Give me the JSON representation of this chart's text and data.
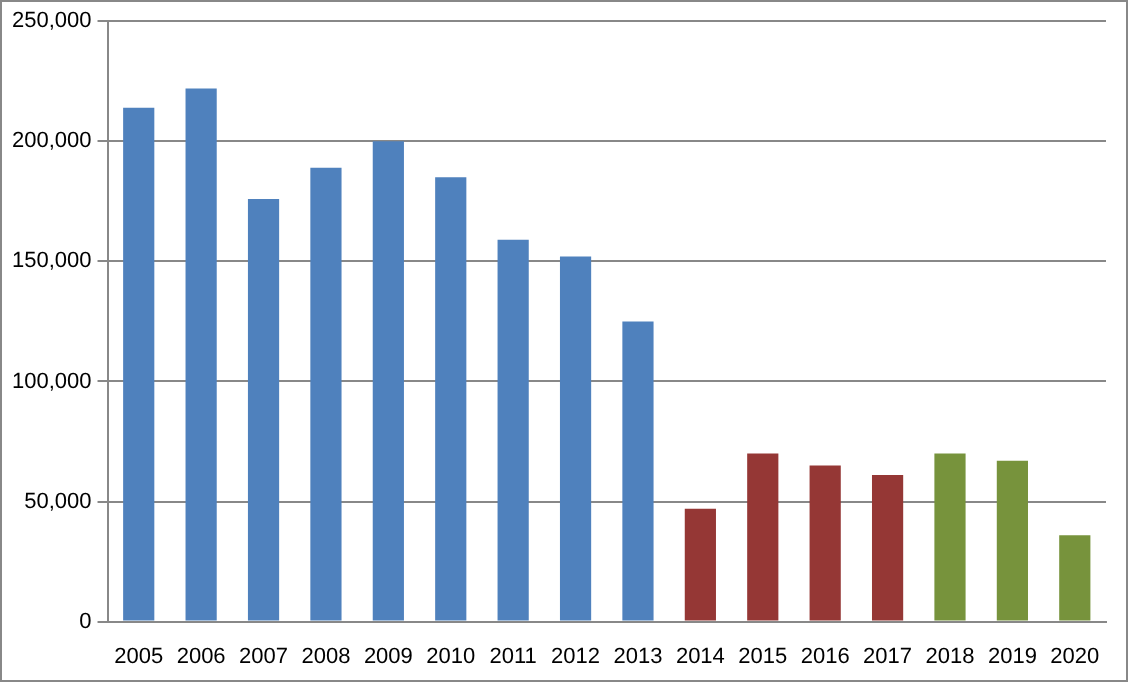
{
  "chart_data": {
    "type": "bar",
    "categories": [
      "2005",
      "2006",
      "2007",
      "2008",
      "2009",
      "2010",
      "2011",
      "2012",
      "2013",
      "2014",
      "2015",
      "2016",
      "2017",
      "2018",
      "2019",
      "2020"
    ],
    "values": [
      214000,
      222000,
      176000,
      189000,
      200000,
      185000,
      159000,
      152000,
      125000,
      47000,
      70000,
      65000,
      61000,
      70000,
      67000,
      36000
    ],
    "colors": [
      "#4f81bd",
      "#4f81bd",
      "#4f81bd",
      "#4f81bd",
      "#4f81bd",
      "#4f81bd",
      "#4f81bd",
      "#4f81bd",
      "#4f81bd",
      "#953735",
      "#953735",
      "#953735",
      "#953735",
      "#77933c",
      "#77933c",
      "#77933c"
    ],
    "ylim": [
      0,
      250000
    ],
    "yticks": [
      0,
      {
        "value": 50000,
        "label": "50,000"
      },
      {
        "value": 100000,
        "label": "100,000"
      },
      {
        "value": 150000,
        "label": "150,000"
      },
      {
        "value": 200000,
        "label": "200,000"
      },
      {
        "value": 250000,
        "label": "250,000"
      }
    ],
    "grid": "y",
    "legend": false
  }
}
